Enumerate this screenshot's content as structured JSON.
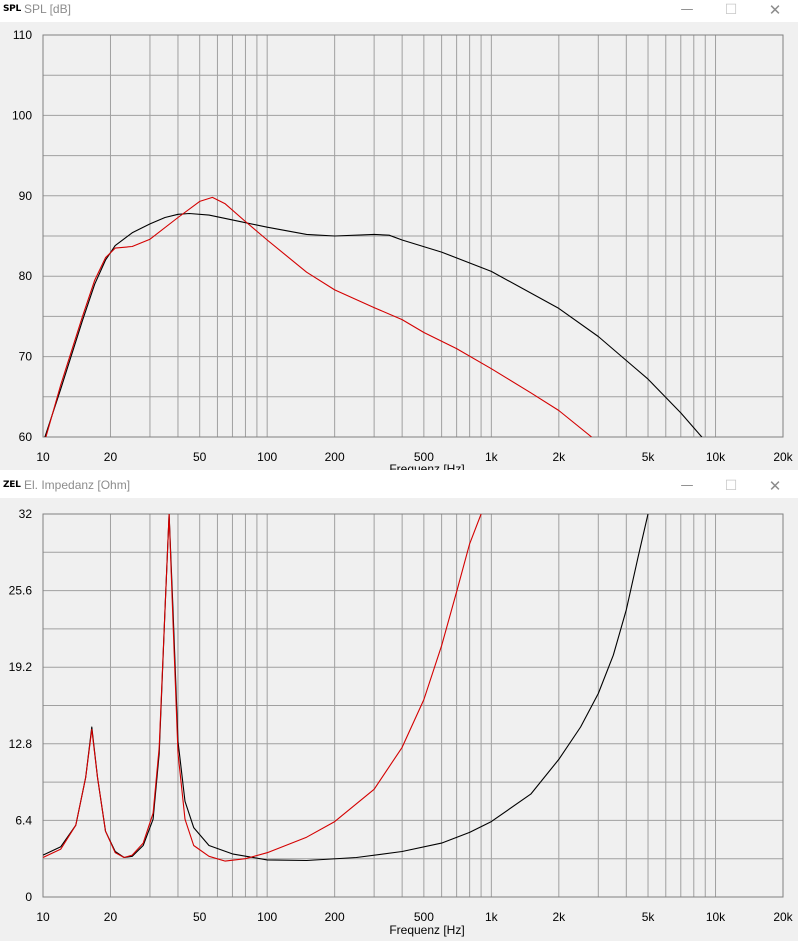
{
  "windows": [
    {
      "icon": "SPL",
      "title": "SPL [dB]",
      "controls": {
        "minimize": "—",
        "maximize": "☐",
        "close": "✕"
      }
    },
    {
      "icon": "ZEL",
      "title": "El. Impedanz [Ohm]",
      "controls": {
        "minimize": "—",
        "maximize": "☐",
        "close": "✕"
      }
    }
  ],
  "colors": {
    "series_a": "#000000",
    "series_b": "#d40000",
    "grid": "#a0a0a0",
    "plot_bg": "#f0f0f0"
  },
  "chart_data": [
    {
      "type": "line",
      "title": "SPL [dB]",
      "xlabel": "Frequenz [Hz]",
      "ylabel": "",
      "x_scale": "log",
      "xlim": [
        10,
        20000
      ],
      "ylim": [
        60,
        110
      ],
      "y_ticks": [
        {
          "value": 60,
          "label": "60"
        },
        {
          "value": 70,
          "label": "70"
        },
        {
          "value": 80,
          "label": "80"
        },
        {
          "value": 90,
          "label": "90"
        },
        {
          "value": 100,
          "label": "100"
        },
        {
          "value": 110,
          "label": "110"
        }
      ],
      "x_ticks": [
        {
          "value": 10,
          "label": "10"
        },
        {
          "value": 20,
          "label": "20"
        },
        {
          "value": 50,
          "label": "50"
        },
        {
          "value": 100,
          "label": "100"
        },
        {
          "value": 200,
          "label": "200"
        },
        {
          "value": 500,
          "label": "500"
        },
        {
          "value": 1000,
          "label": "1k"
        },
        {
          "value": 2000,
          "label": "2k"
        },
        {
          "value": 5000,
          "label": "5k"
        },
        {
          "value": 10000,
          "label": "10k"
        },
        {
          "value": 20000,
          "label": "20k"
        }
      ],
      "grid": true,
      "series": [
        {
          "color": "#000000",
          "points": [
            [
              10.2,
              60
            ],
            [
              12,
              66
            ],
            [
              15,
              74.5
            ],
            [
              17,
              79
            ],
            [
              19,
              82
            ],
            [
              21,
              83.8
            ],
            [
              25,
              85.4
            ],
            [
              30,
              86.5
            ],
            [
              35,
              87.3
            ],
            [
              40,
              87.7
            ],
            [
              45,
              87.8
            ],
            [
              55,
              87.6
            ],
            [
              70,
              87
            ],
            [
              100,
              86.1
            ],
            [
              150,
              85.2
            ],
            [
              200,
              85
            ],
            [
              300,
              85.2
            ],
            [
              350,
              85.1
            ],
            [
              400,
              84.5
            ],
            [
              600,
              83
            ],
            [
              1000,
              80.6
            ],
            [
              2000,
              76
            ],
            [
              3000,
              72.5
            ],
            [
              5000,
              67.2
            ],
            [
              7000,
              63
            ],
            [
              9000,
              59.5
            ]
          ]
        },
        {
          "color": "#d40000",
          "points": [
            [
              10.3,
              60
            ],
            [
              12,
              66.5
            ],
            [
              15,
              75
            ],
            [
              17,
              79.5
            ],
            [
              19,
              82.3
            ],
            [
              21,
              83.5
            ],
            [
              25,
              83.7
            ],
            [
              30,
              84.6
            ],
            [
              40,
              87.3
            ],
            [
              50,
              89.3
            ],
            [
              57,
              89.8
            ],
            [
              65,
              89
            ],
            [
              80,
              86.8
            ],
            [
              100,
              84.5
            ],
            [
              150,
              80.5
            ],
            [
              200,
              78.3
            ],
            [
              300,
              76.1
            ],
            [
              400,
              74.6
            ],
            [
              500,
              73
            ],
            [
              700,
              71
            ],
            [
              1000,
              68.5
            ],
            [
              1500,
              65.5
            ],
            [
              2000,
              63.3
            ],
            [
              2800,
              60
            ]
          ]
        }
      ]
    },
    {
      "type": "line",
      "title": "El. Impedanz [Ohm]",
      "xlabel": "Frequenz [Hz]",
      "ylabel": "",
      "x_scale": "log",
      "xlim": [
        10,
        20000
      ],
      "ylim": [
        0,
        32
      ],
      "y_ticks": [
        {
          "value": 0,
          "label": "0"
        },
        {
          "value": 6.4,
          "label": "6.4"
        },
        {
          "value": 12.8,
          "label": "12.8"
        },
        {
          "value": 19.2,
          "label": "19.2"
        },
        {
          "value": 25.6,
          "label": "25.6"
        },
        {
          "value": 32,
          "label": "32"
        }
      ],
      "x_ticks": [
        {
          "value": 10,
          "label": "10"
        },
        {
          "value": 20,
          "label": "20"
        },
        {
          "value": 50,
          "label": "50"
        },
        {
          "value": 100,
          "label": "100"
        },
        {
          "value": 200,
          "label": "200"
        },
        {
          "value": 500,
          "label": "500"
        },
        {
          "value": 1000,
          "label": "1k"
        },
        {
          "value": 2000,
          "label": "2k"
        },
        {
          "value": 5000,
          "label": "5k"
        },
        {
          "value": 10000,
          "label": "10k"
        },
        {
          "value": 20000,
          "label": "20k"
        }
      ],
      "grid": true,
      "series": [
        {
          "color": "#000000",
          "points": [
            [
              10,
              3.5
            ],
            [
              12,
              4.2
            ],
            [
              14,
              6
            ],
            [
              15.5,
              10
            ],
            [
              16.5,
              14.2
            ],
            [
              17.5,
              10
            ],
            [
              19,
              5.5
            ],
            [
              21,
              3.8
            ],
            [
              23,
              3.3
            ],
            [
              25,
              3.4
            ],
            [
              28,
              4.3
            ],
            [
              31,
              6.5
            ],
            [
              33,
              12
            ],
            [
              35,
              24
            ],
            [
              36.5,
              32
            ],
            [
              38,
              24
            ],
            [
              40,
              13
            ],
            [
              43,
              8
            ],
            [
              47,
              5.8
            ],
            [
              55,
              4.3
            ],
            [
              70,
              3.6
            ],
            [
              100,
              3.1
            ],
            [
              150,
              3.05
            ],
            [
              250,
              3.3
            ],
            [
              400,
              3.8
            ],
            [
              600,
              4.5
            ],
            [
              800,
              5.4
            ],
            [
              1000,
              6.3
            ],
            [
              1500,
              8.6
            ],
            [
              2000,
              11.5
            ],
            [
              2500,
              14.2
            ],
            [
              3000,
              17
            ],
            [
              3500,
              20.2
            ],
            [
              4000,
              24
            ],
            [
              4500,
              28.3
            ],
            [
              5000,
              32
            ]
          ]
        },
        {
          "color": "#d40000",
          "points": [
            [
              10,
              3.3
            ],
            [
              12,
              4
            ],
            [
              14,
              6
            ],
            [
              15.5,
              10
            ],
            [
              16.5,
              14
            ],
            [
              17.5,
              10
            ],
            [
              19,
              5.5
            ],
            [
              21,
              3.7
            ],
            [
              23,
              3.3
            ],
            [
              25,
              3.5
            ],
            [
              28,
              4.5
            ],
            [
              31,
              7
            ],
            [
              33,
              12.5
            ],
            [
              35,
              24
            ],
            [
              36.5,
              32
            ],
            [
              38,
              23
            ],
            [
              40,
              12
            ],
            [
              43,
              6.5
            ],
            [
              47,
              4.3
            ],
            [
              55,
              3.4
            ],
            [
              65,
              3
            ],
            [
              80,
              3.2
            ],
            [
              100,
              3.7
            ],
            [
              150,
              5
            ],
            [
              200,
              6.3
            ],
            [
              300,
              9
            ],
            [
              400,
              12.5
            ],
            [
              500,
              16.5
            ],
            [
              600,
              21
            ],
            [
              700,
              25.5
            ],
            [
              800,
              29.5
            ],
            [
              900,
              32
            ]
          ]
        }
      ]
    }
  ]
}
